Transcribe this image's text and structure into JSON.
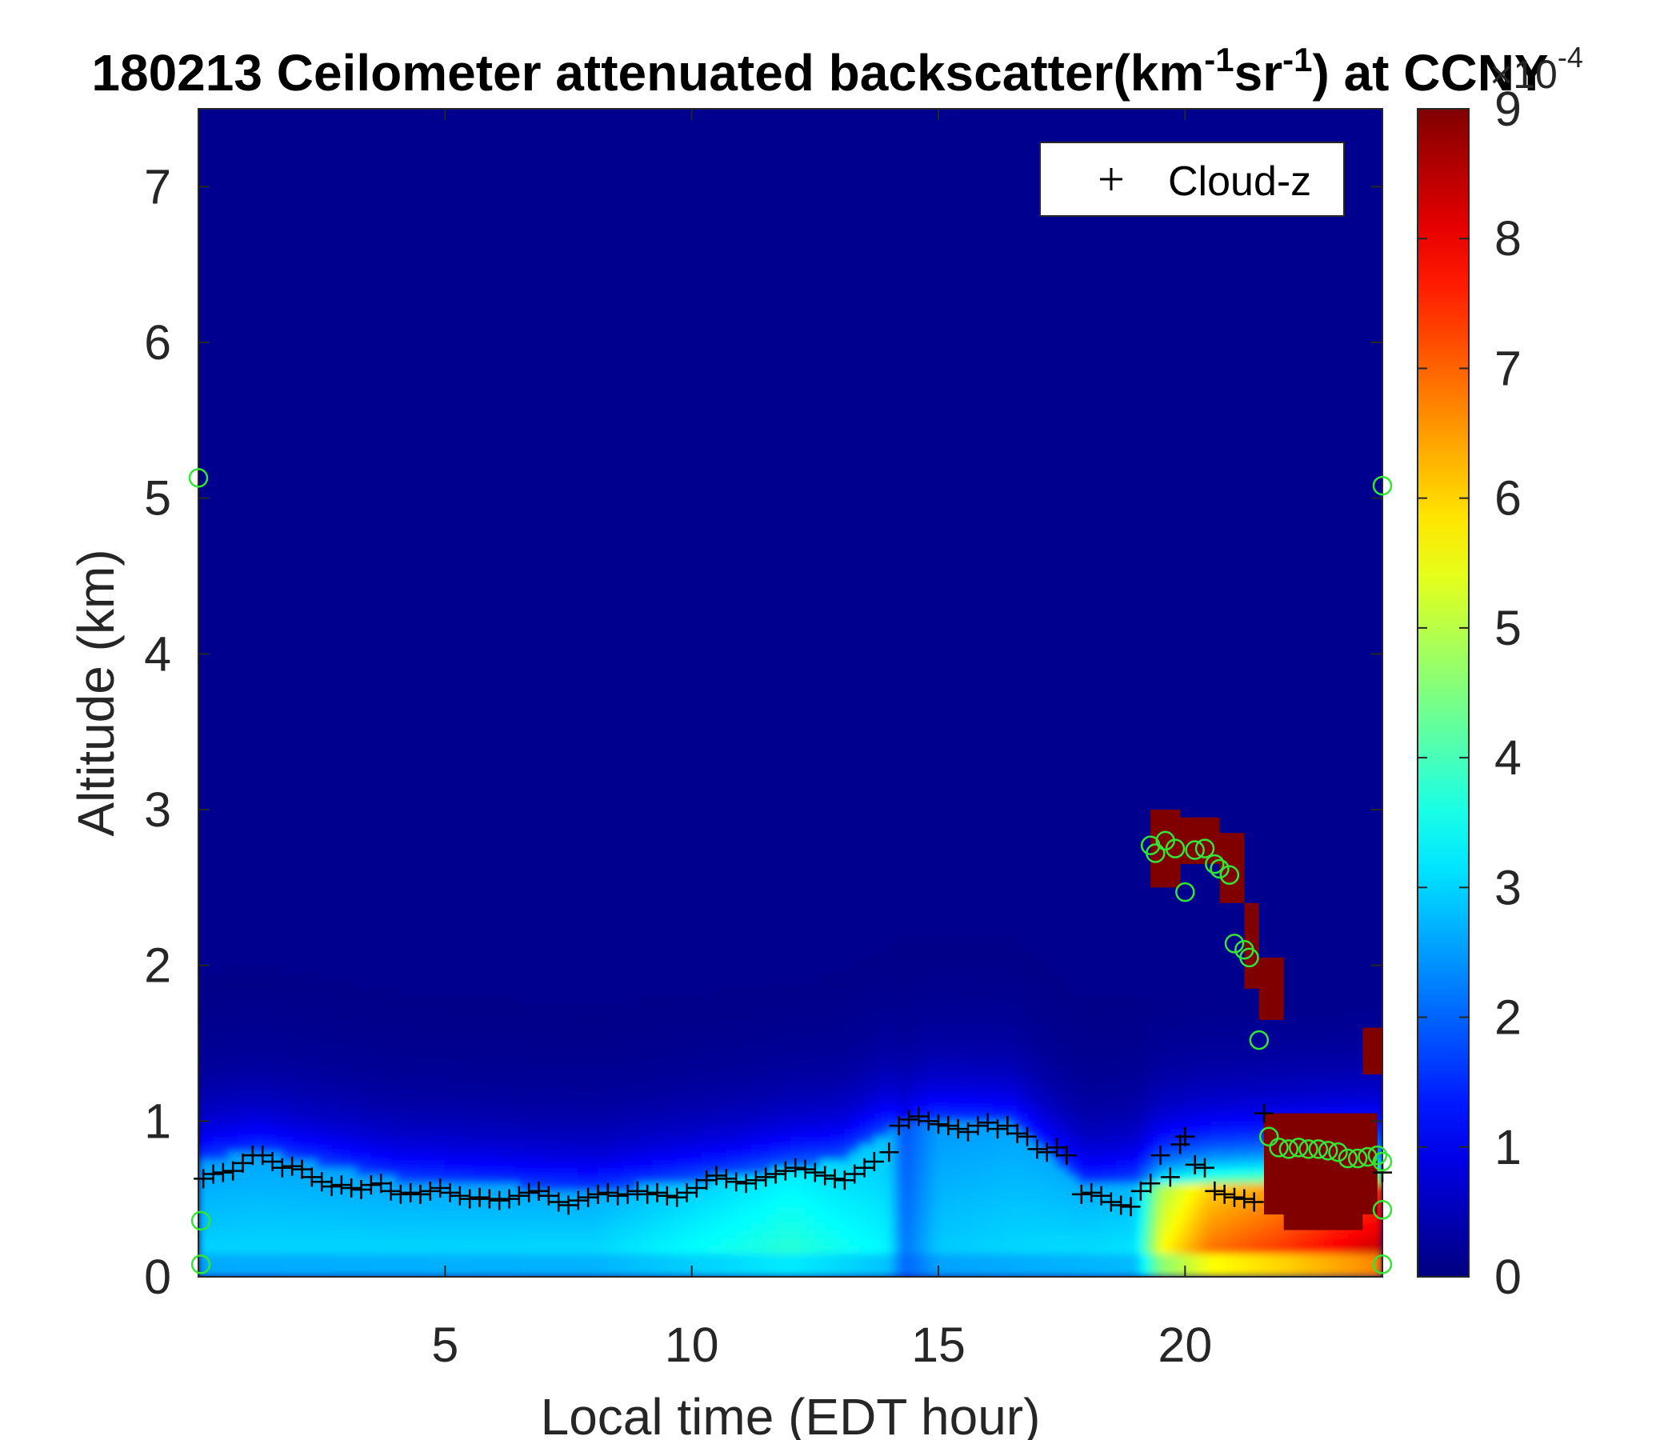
{
  "chart_data": {
    "type": "heatmap",
    "title_parts": [
      "180213 Ceilometer attenuated backscatter(km",
      "-1",
      "sr",
      "-1",
      ") at CCNY"
    ],
    "xlabel": "Local time (EDT hour)",
    "ylabel": "Altitude (km)",
    "xlim": [
      0,
      24
    ],
    "ylim": [
      0,
      7.5
    ],
    "xticks": [
      5,
      10,
      15,
      20
    ],
    "yticks": [
      0,
      1,
      2,
      3,
      4,
      5,
      6,
      7
    ],
    "colormap": "jet",
    "colorbar": {
      "min": 0,
      "max": 9,
      "ticks": [
        0,
        1,
        2,
        3,
        4,
        5,
        6,
        7,
        8,
        9
      ],
      "exponent_base": "×10",
      "exponent_power": "-4"
    },
    "legend": {
      "entries": [
        {
          "marker": "+",
          "label": "Cloud-z"
        }
      ],
      "position": "top-right"
    },
    "field": {
      "background_intensity": 0.05,
      "aerosol_layer": {
        "height_km": [
          [
            0,
            0.72
          ],
          [
            1.2,
            0.78
          ],
          [
            4,
            0.6
          ],
          [
            8,
            0.52
          ],
          [
            11,
            0.62
          ],
          [
            13,
            0.72
          ],
          [
            14.5,
            1.0
          ],
          [
            16.5,
            0.95
          ],
          [
            18,
            0.55
          ],
          [
            19.5,
            0.6
          ],
          [
            24,
            0.6
          ]
        ],
        "intensity": [
          [
            0,
            3.1
          ],
          [
            8,
            3.2
          ],
          [
            12,
            3.9
          ],
          [
            14,
            3.4
          ],
          [
            14.3,
            2.2
          ],
          [
            15,
            3.0
          ],
          [
            19,
            3.3
          ],
          [
            19.5,
            5.8
          ],
          [
            20.5,
            7.2
          ],
          [
            22,
            7.8
          ],
          [
            24,
            8.8
          ]
        ]
      },
      "thick_cloud_blocks": [
        {
          "x": [
            19.3,
            19.9
          ],
          "y": [
            2.5,
            3.0
          ]
        },
        {
          "x": [
            19.9,
            20.7
          ],
          "y": [
            2.65,
            2.95
          ]
        },
        {
          "x": [
            20.7,
            21.2
          ],
          "y": [
            2.4,
            2.85
          ]
        },
        {
          "x": [
            21.2,
            21.5
          ],
          "y": [
            1.85,
            2.4
          ]
        },
        {
          "x": [
            21.5,
            22.0
          ],
          "y": [
            1.65,
            2.05
          ]
        },
        {
          "x": [
            21.6,
            23.9
          ],
          "y": [
            0.4,
            1.05
          ]
        },
        {
          "x": [
            22.0,
            23.6
          ],
          "y": [
            0.3,
            0.5
          ]
        },
        {
          "x": [
            23.6,
            24.0
          ],
          "y": [
            1.3,
            1.6
          ]
        }
      ]
    },
    "cloud_z_points": [
      [
        0.1,
        0.63
      ],
      [
        0.3,
        0.66
      ],
      [
        0.5,
        0.67
      ],
      [
        0.7,
        0.68
      ],
      [
        0.9,
        0.73
      ],
      [
        1.1,
        0.78
      ],
      [
        1.3,
        0.78
      ],
      [
        1.5,
        0.74
      ],
      [
        1.7,
        0.7
      ],
      [
        1.9,
        0.71
      ],
      [
        2.1,
        0.69
      ],
      [
        2.3,
        0.64
      ],
      [
        2.5,
        0.61
      ],
      [
        2.7,
        0.58
      ],
      [
        2.9,
        0.59
      ],
      [
        3.1,
        0.57
      ],
      [
        3.3,
        0.56
      ],
      [
        3.5,
        0.59
      ],
      [
        3.7,
        0.6
      ],
      [
        3.9,
        0.55
      ],
      [
        4.1,
        0.53
      ],
      [
        4.3,
        0.54
      ],
      [
        4.5,
        0.53
      ],
      [
        4.7,
        0.55
      ],
      [
        4.9,
        0.57
      ],
      [
        5.1,
        0.54
      ],
      [
        5.3,
        0.52
      ],
      [
        5.5,
        0.5
      ],
      [
        5.7,
        0.51
      ],
      [
        5.9,
        0.5
      ],
      [
        6.1,
        0.49
      ],
      [
        6.3,
        0.5
      ],
      [
        6.5,
        0.52
      ],
      [
        6.7,
        0.54
      ],
      [
        6.9,
        0.55
      ],
      [
        7.1,
        0.52
      ],
      [
        7.3,
        0.48
      ],
      [
        7.5,
        0.46
      ],
      [
        7.7,
        0.49
      ],
      [
        7.9,
        0.51
      ],
      [
        8.1,
        0.53
      ],
      [
        8.3,
        0.54
      ],
      [
        8.5,
        0.52
      ],
      [
        8.7,
        0.53
      ],
      [
        8.9,
        0.55
      ],
      [
        9.1,
        0.53
      ],
      [
        9.3,
        0.54
      ],
      [
        9.5,
        0.52
      ],
      [
        9.7,
        0.51
      ],
      [
        9.9,
        0.54
      ],
      [
        10.1,
        0.57
      ],
      [
        10.3,
        0.62
      ],
      [
        10.5,
        0.65
      ],
      [
        10.7,
        0.63
      ],
      [
        10.9,
        0.61
      ],
      [
        11.1,
        0.6
      ],
      [
        11.3,
        0.62
      ],
      [
        11.5,
        0.64
      ],
      [
        11.7,
        0.66
      ],
      [
        11.9,
        0.68
      ],
      [
        12.1,
        0.7
      ],
      [
        12.3,
        0.69
      ],
      [
        12.5,
        0.67
      ],
      [
        12.7,
        0.65
      ],
      [
        12.9,
        0.63
      ],
      [
        13.1,
        0.62
      ],
      [
        13.3,
        0.66
      ],
      [
        13.5,
        0.7
      ],
      [
        13.7,
        0.74
      ],
      [
        14.0,
        0.8
      ],
      [
        14.2,
        0.97
      ],
      [
        14.4,
        1.01
      ],
      [
        14.6,
        1.03
      ],
      [
        14.8,
        1.0
      ],
      [
        15.0,
        0.98
      ],
      [
        15.2,
        0.97
      ],
      [
        15.4,
        0.95
      ],
      [
        15.6,
        0.93
      ],
      [
        15.8,
        0.97
      ],
      [
        16.0,
        0.99
      ],
      [
        16.2,
        0.95
      ],
      [
        16.4,
        0.97
      ],
      [
        16.6,
        0.92
      ],
      [
        16.8,
        0.9
      ],
      [
        17.0,
        0.82
      ],
      [
        17.2,
        0.8
      ],
      [
        17.4,
        0.83
      ],
      [
        17.6,
        0.78
      ],
      [
        17.9,
        0.53
      ],
      [
        18.1,
        0.54
      ],
      [
        18.3,
        0.52
      ],
      [
        18.5,
        0.48
      ],
      [
        18.7,
        0.46
      ],
      [
        18.9,
        0.45
      ],
      [
        19.1,
        0.55
      ],
      [
        19.3,
        0.6
      ],
      [
        19.5,
        0.78
      ],
      [
        19.7,
        0.64
      ],
      [
        19.9,
        0.85
      ],
      [
        20.0,
        0.9
      ],
      [
        20.2,
        0.72
      ],
      [
        20.4,
        0.7
      ],
      [
        20.6,
        0.55
      ],
      [
        20.8,
        0.53
      ],
      [
        21.0,
        0.51
      ],
      [
        21.2,
        0.5
      ],
      [
        21.4,
        0.48
      ],
      [
        21.6,
        1.05
      ],
      [
        24.0,
        0.67
      ]
    ],
    "circle_points": [
      [
        0.0,
        5.13
      ],
      [
        0.05,
        0.36
      ],
      [
        0.05,
        0.08
      ],
      [
        19.3,
        2.77
      ],
      [
        19.4,
        2.72
      ],
      [
        19.6,
        2.8
      ],
      [
        19.8,
        2.75
      ],
      [
        20.0,
        2.47
      ],
      [
        20.2,
        2.74
      ],
      [
        20.4,
        2.75
      ],
      [
        20.6,
        2.65
      ],
      [
        20.7,
        2.62
      ],
      [
        20.9,
        2.58
      ],
      [
        21.0,
        2.14
      ],
      [
        21.2,
        2.1
      ],
      [
        21.3,
        2.05
      ],
      [
        21.5,
        1.52
      ],
      [
        21.7,
        0.9
      ],
      [
        21.9,
        0.83
      ],
      [
        22.1,
        0.82
      ],
      [
        22.3,
        0.83
      ],
      [
        22.5,
        0.82
      ],
      [
        22.7,
        0.82
      ],
      [
        22.9,
        0.81
      ],
      [
        23.1,
        0.8
      ],
      [
        23.3,
        0.76
      ],
      [
        23.5,
        0.76
      ],
      [
        23.7,
        0.77
      ],
      [
        23.9,
        0.78
      ],
      [
        24.0,
        0.74
      ],
      [
        24.0,
        5.08
      ],
      [
        24.0,
        0.43
      ],
      [
        24.0,
        0.08
      ]
    ]
  }
}
